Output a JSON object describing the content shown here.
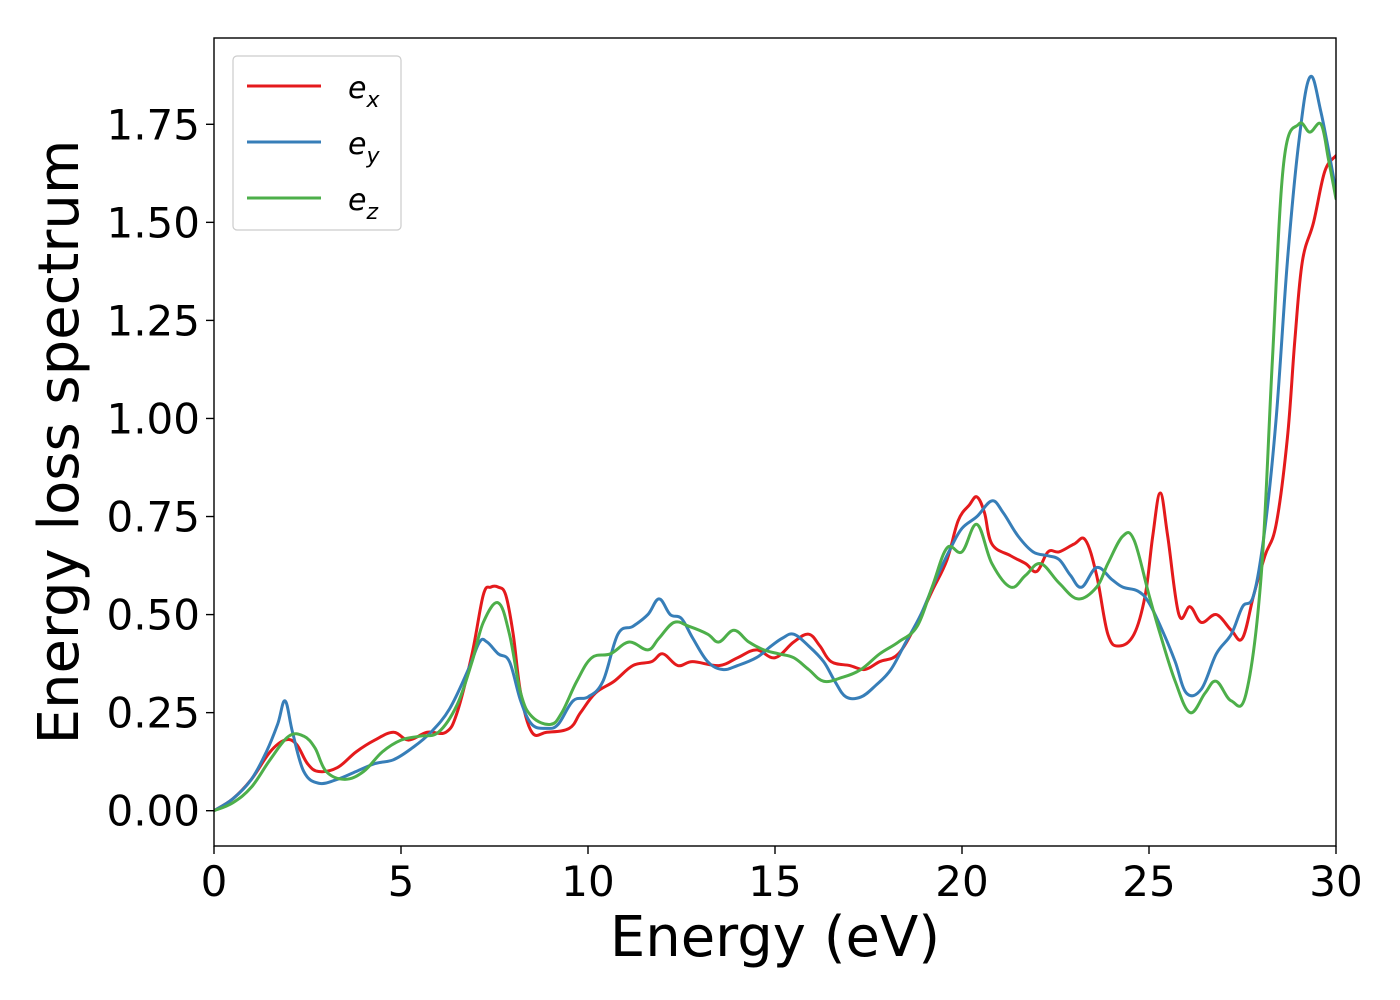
{
  "chart_data": {
    "type": "line",
    "title": "",
    "xlabel": "Energy (eV)",
    "ylabel": "Energy loss spectrum",
    "xlim": [
      0,
      30
    ],
    "ylim": [
      -0.09,
      1.97
    ],
    "xticks": [
      0,
      5,
      10,
      15,
      20,
      25,
      30
    ],
    "xtick_labels": [
      "0",
      "5",
      "10",
      "15",
      "20",
      "25",
      "30"
    ],
    "yticks": [
      0.0,
      0.25,
      0.5,
      0.75,
      1.0,
      1.25,
      1.5,
      1.75
    ],
    "ytick_labels": [
      "0.00",
      "0.25",
      "0.50",
      "0.75",
      "1.00",
      "1.25",
      "1.50",
      "1.75"
    ],
    "grid": false,
    "legend_position": "top-left",
    "series": [
      {
        "name": "e_x",
        "legend_base": "e",
        "legend_sub": "x",
        "color": "#e41a1c",
        "points": [
          [
            0,
            0
          ],
          [
            0.5,
            0.03
          ],
          [
            1.0,
            0.08
          ],
          [
            1.5,
            0.15
          ],
          [
            1.9,
            0.18
          ],
          [
            2.2,
            0.17
          ],
          [
            2.5,
            0.12
          ],
          [
            2.8,
            0.1
          ],
          [
            3.3,
            0.11
          ],
          [
            3.8,
            0.15
          ],
          [
            4.3,
            0.18
          ],
          [
            4.8,
            0.2
          ],
          [
            5.2,
            0.18
          ],
          [
            5.7,
            0.2
          ],
          [
            6.2,
            0.2
          ],
          [
            6.5,
            0.25
          ],
          [
            6.9,
            0.4
          ],
          [
            7.2,
            0.55
          ],
          [
            7.4,
            0.57
          ],
          [
            7.6,
            0.57
          ],
          [
            7.8,
            0.55
          ],
          [
            8.0,
            0.45
          ],
          [
            8.2,
            0.3
          ],
          [
            8.5,
            0.2
          ],
          [
            8.9,
            0.2
          ],
          [
            9.5,
            0.21
          ],
          [
            9.8,
            0.25
          ],
          [
            10.2,
            0.3
          ],
          [
            10.7,
            0.33
          ],
          [
            11.2,
            0.37
          ],
          [
            11.7,
            0.38
          ],
          [
            12.0,
            0.4
          ],
          [
            12.4,
            0.37
          ],
          [
            12.8,
            0.38
          ],
          [
            13.5,
            0.37
          ],
          [
            14.0,
            0.39
          ],
          [
            14.5,
            0.41
          ],
          [
            15.0,
            0.39
          ],
          [
            15.5,
            0.43
          ],
          [
            15.9,
            0.45
          ],
          [
            16.2,
            0.42
          ],
          [
            16.5,
            0.38
          ],
          [
            17.0,
            0.37
          ],
          [
            17.4,
            0.36
          ],
          [
            17.8,
            0.38
          ],
          [
            18.3,
            0.4
          ],
          [
            18.8,
            0.48
          ],
          [
            19.2,
            0.56
          ],
          [
            19.6,
            0.64
          ],
          [
            19.9,
            0.74
          ],
          [
            20.2,
            0.78
          ],
          [
            20.4,
            0.8
          ],
          [
            20.6,
            0.76
          ],
          [
            20.8,
            0.68
          ],
          [
            21.3,
            0.65
          ],
          [
            21.7,
            0.63
          ],
          [
            22.0,
            0.61
          ],
          [
            22.3,
            0.66
          ],
          [
            22.6,
            0.66
          ],
          [
            23.0,
            0.68
          ],
          [
            23.3,
            0.69
          ],
          [
            23.6,
            0.6
          ],
          [
            23.9,
            0.45
          ],
          [
            24.2,
            0.42
          ],
          [
            24.6,
            0.45
          ],
          [
            24.9,
            0.55
          ],
          [
            25.1,
            0.7
          ],
          [
            25.3,
            0.81
          ],
          [
            25.5,
            0.7
          ],
          [
            25.8,
            0.5
          ],
          [
            26.1,
            0.52
          ],
          [
            26.4,
            0.48
          ],
          [
            26.8,
            0.5
          ],
          [
            27.2,
            0.46
          ],
          [
            27.5,
            0.44
          ],
          [
            27.8,
            0.55
          ],
          [
            28.1,
            0.65
          ],
          [
            28.4,
            0.73
          ],
          [
            28.7,
            0.95
          ],
          [
            28.9,
            1.2
          ],
          [
            29.1,
            1.4
          ],
          [
            29.4,
            1.5
          ],
          [
            29.7,
            1.63
          ],
          [
            30.0,
            1.67
          ]
        ]
      },
      {
        "name": "e_y",
        "legend_base": "e",
        "legend_sub": "y",
        "color": "#377eb8",
        "points": [
          [
            0,
            0
          ],
          [
            0.5,
            0.03
          ],
          [
            1.0,
            0.08
          ],
          [
            1.4,
            0.15
          ],
          [
            1.7,
            0.22
          ],
          [
            1.9,
            0.28
          ],
          [
            2.1,
            0.2
          ],
          [
            2.4,
            0.1
          ],
          [
            2.8,
            0.07
          ],
          [
            3.3,
            0.08
          ],
          [
            3.8,
            0.1
          ],
          [
            4.3,
            0.12
          ],
          [
            4.8,
            0.13
          ],
          [
            5.3,
            0.16
          ],
          [
            5.8,
            0.2
          ],
          [
            6.3,
            0.26
          ],
          [
            6.8,
            0.36
          ],
          [
            7.1,
            0.43
          ],
          [
            7.3,
            0.43
          ],
          [
            7.6,
            0.4
          ],
          [
            7.9,
            0.38
          ],
          [
            8.2,
            0.28
          ],
          [
            8.5,
            0.22
          ],
          [
            8.9,
            0.21
          ],
          [
            9.2,
            0.22
          ],
          [
            9.6,
            0.28
          ],
          [
            10.0,
            0.29
          ],
          [
            10.4,
            0.33
          ],
          [
            10.8,
            0.45
          ],
          [
            11.2,
            0.47
          ],
          [
            11.6,
            0.5
          ],
          [
            11.9,
            0.54
          ],
          [
            12.2,
            0.5
          ],
          [
            12.5,
            0.49
          ],
          [
            12.8,
            0.44
          ],
          [
            13.2,
            0.38
          ],
          [
            13.6,
            0.36
          ],
          [
            14.0,
            0.37
          ],
          [
            14.5,
            0.39
          ],
          [
            14.9,
            0.42
          ],
          [
            15.2,
            0.44
          ],
          [
            15.5,
            0.45
          ],
          [
            15.9,
            0.42
          ],
          [
            16.3,
            0.38
          ],
          [
            16.6,
            0.33
          ],
          [
            16.9,
            0.29
          ],
          [
            17.3,
            0.29
          ],
          [
            17.7,
            0.32
          ],
          [
            18.1,
            0.36
          ],
          [
            18.5,
            0.43
          ],
          [
            18.9,
            0.5
          ],
          [
            19.3,
            0.59
          ],
          [
            19.7,
            0.67
          ],
          [
            20.0,
            0.72
          ],
          [
            20.4,
            0.75
          ],
          [
            20.8,
            0.79
          ],
          [
            21.1,
            0.76
          ],
          [
            21.5,
            0.7
          ],
          [
            21.9,
            0.66
          ],
          [
            22.3,
            0.65
          ],
          [
            22.6,
            0.64
          ],
          [
            22.9,
            0.6
          ],
          [
            23.2,
            0.57
          ],
          [
            23.6,
            0.62
          ],
          [
            24.0,
            0.59
          ],
          [
            24.3,
            0.57
          ],
          [
            24.7,
            0.56
          ],
          [
            25.0,
            0.53
          ],
          [
            25.4,
            0.45
          ],
          [
            25.7,
            0.38
          ],
          [
            26.0,
            0.3
          ],
          [
            26.4,
            0.31
          ],
          [
            26.8,
            0.4
          ],
          [
            27.2,
            0.45
          ],
          [
            27.5,
            0.52
          ],
          [
            27.8,
            0.55
          ],
          [
            28.1,
            0.72
          ],
          [
            28.4,
            1.0
          ],
          [
            28.7,
            1.4
          ],
          [
            29.0,
            1.7
          ],
          [
            29.3,
            1.87
          ],
          [
            29.6,
            1.78
          ],
          [
            30.0,
            1.58
          ]
        ]
      },
      {
        "name": "e_z",
        "legend_base": "e",
        "legend_sub": "z",
        "color": "#4daf4a",
        "points": [
          [
            0,
            0
          ],
          [
            0.5,
            0.02
          ],
          [
            1.0,
            0.06
          ],
          [
            1.5,
            0.13
          ],
          [
            2.0,
            0.19
          ],
          [
            2.4,
            0.19
          ],
          [
            2.7,
            0.16
          ],
          [
            3.0,
            0.1
          ],
          [
            3.5,
            0.08
          ],
          [
            4.0,
            0.1
          ],
          [
            4.5,
            0.15
          ],
          [
            5.0,
            0.18
          ],
          [
            5.5,
            0.19
          ],
          [
            6.0,
            0.2
          ],
          [
            6.5,
            0.27
          ],
          [
            6.9,
            0.38
          ],
          [
            7.2,
            0.48
          ],
          [
            7.6,
            0.53
          ],
          [
            7.9,
            0.45
          ],
          [
            8.2,
            0.3
          ],
          [
            8.5,
            0.24
          ],
          [
            9.0,
            0.22
          ],
          [
            9.3,
            0.25
          ],
          [
            9.7,
            0.33
          ],
          [
            10.1,
            0.39
          ],
          [
            10.6,
            0.4
          ],
          [
            11.1,
            0.43
          ],
          [
            11.6,
            0.41
          ],
          [
            11.9,
            0.44
          ],
          [
            12.3,
            0.48
          ],
          [
            12.7,
            0.47
          ],
          [
            13.2,
            0.45
          ],
          [
            13.5,
            0.43
          ],
          [
            13.9,
            0.46
          ],
          [
            14.3,
            0.43
          ],
          [
            14.7,
            0.41
          ],
          [
            15.1,
            0.4
          ],
          [
            15.5,
            0.39
          ],
          [
            15.9,
            0.36
          ],
          [
            16.3,
            0.33
          ],
          [
            16.8,
            0.34
          ],
          [
            17.3,
            0.36
          ],
          [
            17.8,
            0.4
          ],
          [
            18.3,
            0.43
          ],
          [
            18.8,
            0.47
          ],
          [
            19.2,
            0.57
          ],
          [
            19.6,
            0.67
          ],
          [
            20.0,
            0.66
          ],
          [
            20.4,
            0.73
          ],
          [
            20.8,
            0.63
          ],
          [
            21.3,
            0.57
          ],
          [
            21.7,
            0.6
          ],
          [
            22.1,
            0.63
          ],
          [
            22.6,
            0.58
          ],
          [
            23.1,
            0.54
          ],
          [
            23.6,
            0.57
          ],
          [
            23.9,
            0.63
          ],
          [
            24.3,
            0.7
          ],
          [
            24.6,
            0.69
          ],
          [
            25.0,
            0.55
          ],
          [
            25.3,
            0.45
          ],
          [
            25.7,
            0.33
          ],
          [
            26.1,
            0.25
          ],
          [
            26.5,
            0.3
          ],
          [
            26.8,
            0.33
          ],
          [
            27.2,
            0.28
          ],
          [
            27.6,
            0.3
          ],
          [
            28.0,
            0.6
          ],
          [
            28.3,
            1.15
          ],
          [
            28.6,
            1.65
          ],
          [
            29.0,
            1.75
          ],
          [
            29.3,
            1.73
          ],
          [
            29.6,
            1.75
          ],
          [
            29.8,
            1.66
          ],
          [
            30.0,
            1.56
          ]
        ]
      }
    ]
  }
}
